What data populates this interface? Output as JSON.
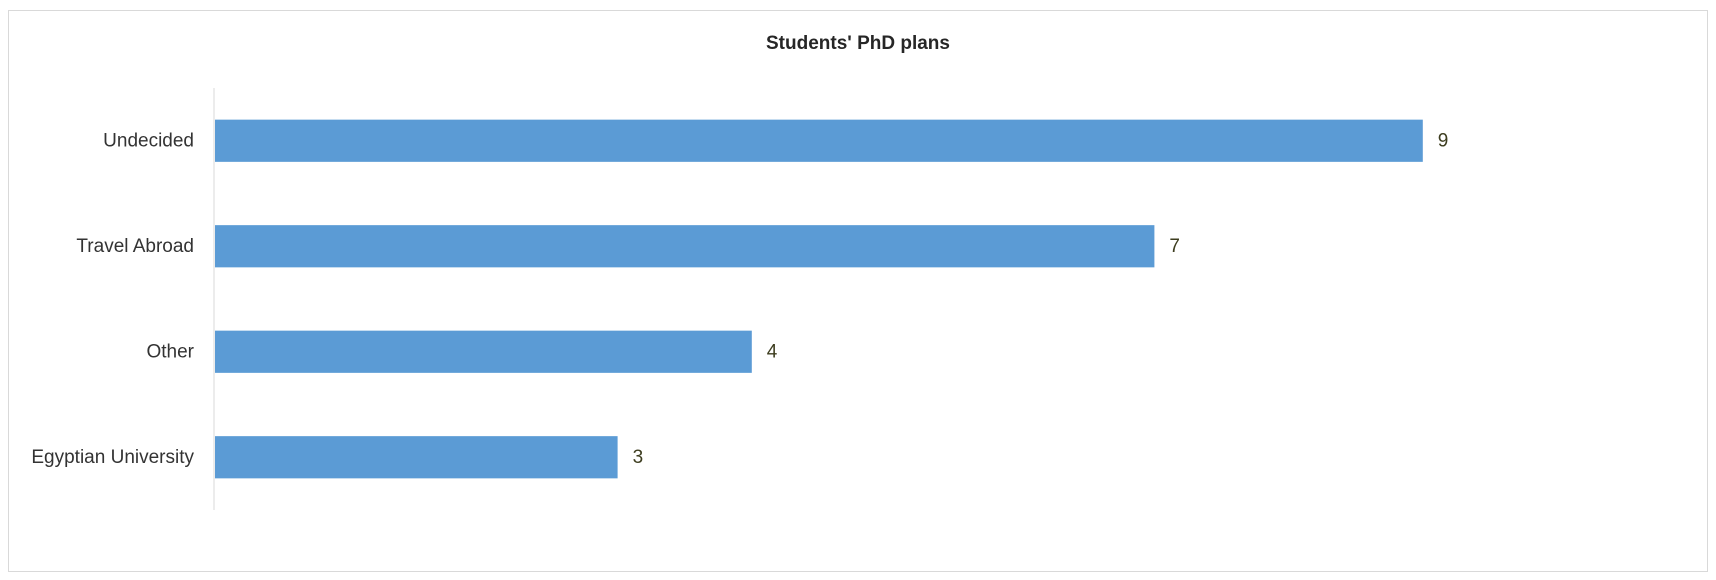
{
  "chart_data": {
    "type": "bar",
    "orientation": "horizontal",
    "title": "Students' PhD plans",
    "xlabel": "",
    "ylabel": "",
    "categories": [
      "Undecided",
      "Travel Abroad",
      "Other",
      "Egyptian University"
    ],
    "values": [
      9,
      7,
      4,
      3
    ],
    "xlim": [
      0,
      10
    ],
    "grid": false,
    "legend": "none",
    "bar_color": "#5b9bd5"
  }
}
